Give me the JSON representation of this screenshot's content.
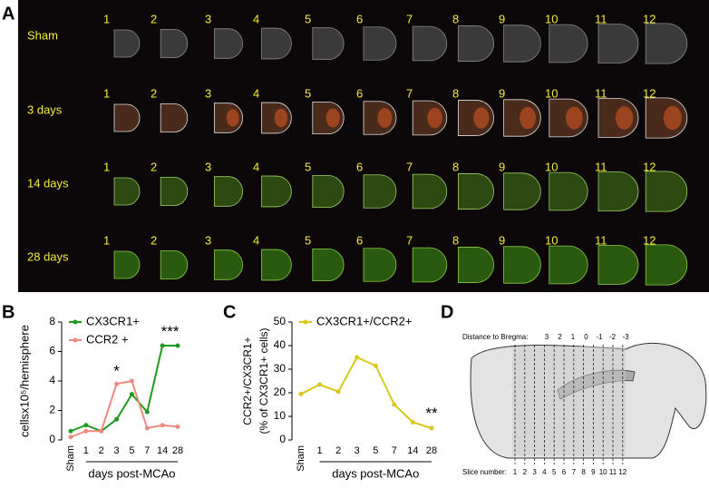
{
  "figure": {
    "panel_labels": [
      "A",
      "B",
      "C",
      "D"
    ],
    "panel_a": {
      "rows": [
        {
          "name": "Sham",
          "slices": [
            "1",
            "2",
            "3",
            "4",
            "5",
            "6",
            "7",
            "8",
            "9",
            "10",
            "11",
            "12"
          ]
        },
        {
          "name": "3 days",
          "slices": [
            "1",
            "2",
            "3",
            "4",
            "5",
            "6",
            "7",
            "8",
            "9",
            "10",
            "11",
            "12"
          ]
        },
        {
          "name": "14 days",
          "slices": [
            "1",
            "2",
            "3",
            "4",
            "5",
            "6",
            "7",
            "8",
            "9",
            "10",
            "11",
            "12"
          ]
        },
        {
          "name": "28 days",
          "slices": [
            "1",
            "2",
            "3",
            "4",
            "5",
            "6",
            "7",
            "8",
            "9",
            "10",
            "11",
            "12"
          ]
        }
      ]
    },
    "panel_d": {
      "bregma_label": "Distance to Bregma:",
      "bregma": [
        "3",
        "2",
        "1",
        "0",
        "-1",
        "-2",
        "-3"
      ],
      "slice_label": "Slice number:",
      "slices": [
        "1",
        "2",
        "3",
        "4",
        "5",
        "6",
        "7",
        "8",
        "9",
        "10",
        "11",
        "12"
      ]
    }
  },
  "chart_data": [
    {
      "type": "line",
      "ylabel": "cellsx10⁵/hemisphere",
      "xlabel": "days post-MCAo",
      "categories": [
        "Sham",
        "1",
        "2",
        "3",
        "5",
        "7",
        "14",
        "28"
      ],
      "series": [
        {
          "name": "CX3CR1+",
          "color": "#1e9a1e",
          "values": [
            0.6,
            1.0,
            0.6,
            1.4,
            3.1,
            1.9,
            6.4,
            6.4
          ]
        },
        {
          "name": "CCR2 +",
          "color": "#f08a80",
          "values": [
            0.2,
            0.6,
            0.6,
            3.8,
            4.0,
            0.8,
            1.0,
            0.9
          ]
        }
      ],
      "ylim": [
        0,
        8
      ],
      "yticks": [
        0,
        2,
        4,
        6,
        8
      ],
      "annotations": [
        "*",
        "***"
      ]
    },
    {
      "type": "line",
      "ylabel": [
        "CCR2+/CX3CR1+",
        "(% of CX3CR1+ cells)"
      ],
      "xlabel": "days post-MCAo",
      "categories": [
        "Sham",
        "1",
        "2",
        "3",
        "5",
        "7",
        "14",
        "28"
      ],
      "series": [
        {
          "name": "CX3CR1+/CCR2+",
          "color": "#d8c81c",
          "values": [
            19.5,
            23.5,
            20.5,
            35,
            31.5,
            15,
            7.5,
            5
          ]
        }
      ],
      "ylim": [
        0,
        50
      ],
      "yticks": [
        0,
        10,
        20,
        30,
        40,
        50
      ],
      "annotations": [
        "**"
      ]
    }
  ]
}
